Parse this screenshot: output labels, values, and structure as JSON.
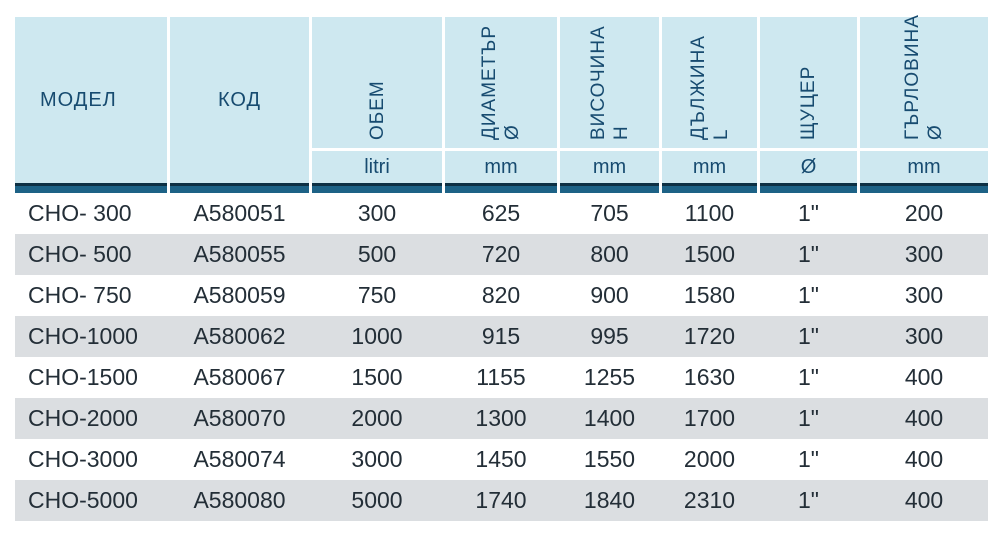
{
  "table": {
    "columns": [
      {
        "key": "model",
        "label": "МОДЕЛ",
        "symbol": "",
        "unit": ""
      },
      {
        "key": "code",
        "label": "КОД",
        "symbol": "",
        "unit": ""
      },
      {
        "key": "volume",
        "label": "ОБЕМ",
        "symbol": "",
        "unit": "litri"
      },
      {
        "key": "diameter",
        "label": "ДИАМЕТЪР",
        "symbol": "Ø",
        "unit": "mm"
      },
      {
        "key": "height",
        "label": "ВИСОЧИНА",
        "symbol": "H",
        "unit": "mm"
      },
      {
        "key": "length",
        "label": "ДЪЛЖИНА",
        "symbol": "L",
        "unit": "mm"
      },
      {
        "key": "nozzle",
        "label": "ЩУЦЕР",
        "symbol": "",
        "unit": "Ø"
      },
      {
        "key": "neck",
        "label": "ГЪРЛОВИНА",
        "symbol": "Ø",
        "unit": "mm"
      }
    ],
    "rows": [
      [
        "СНО- 300",
        "А580051",
        "300",
        "625",
        "705",
        "1100",
        "1\"",
        "200"
      ],
      [
        "СНО- 500",
        "А580055",
        "500",
        "720",
        "800",
        "1500",
        "1\"",
        "300"
      ],
      [
        "СНО- 750",
        "А580059",
        "750",
        "820",
        "900",
        "1580",
        "1\"",
        "300"
      ],
      [
        "СНО-1000",
        "А580062",
        "1000",
        "915",
        "995",
        "1720",
        "1\"",
        "300"
      ],
      [
        "СНО-1500",
        "А580067",
        "1500",
        "1155",
        "1255",
        "1630",
        "1\"",
        "400"
      ],
      [
        "СНО-2000",
        "А580070",
        "2000",
        "1300",
        "1400",
        "1700",
        "1\"",
        "400"
      ],
      [
        "СНО-3000",
        "А580074",
        "3000",
        "1450",
        "1550",
        "2000",
        "1\"",
        "400"
      ],
      [
        "СНО-5000",
        "А580080",
        "5000",
        "1740",
        "1840",
        "2310",
        "1\"",
        "400"
      ]
    ]
  },
  "colors": {
    "page_bg": "#ffffff",
    "header_bg": "#cee8f0",
    "header_text": "#174b70",
    "bar_top": "#0d3044",
    "bar_bottom": "#1d6286",
    "row_bg": "#ffffff",
    "row_alt_bg": "#dbdee1",
    "data_text": "#232e37"
  }
}
